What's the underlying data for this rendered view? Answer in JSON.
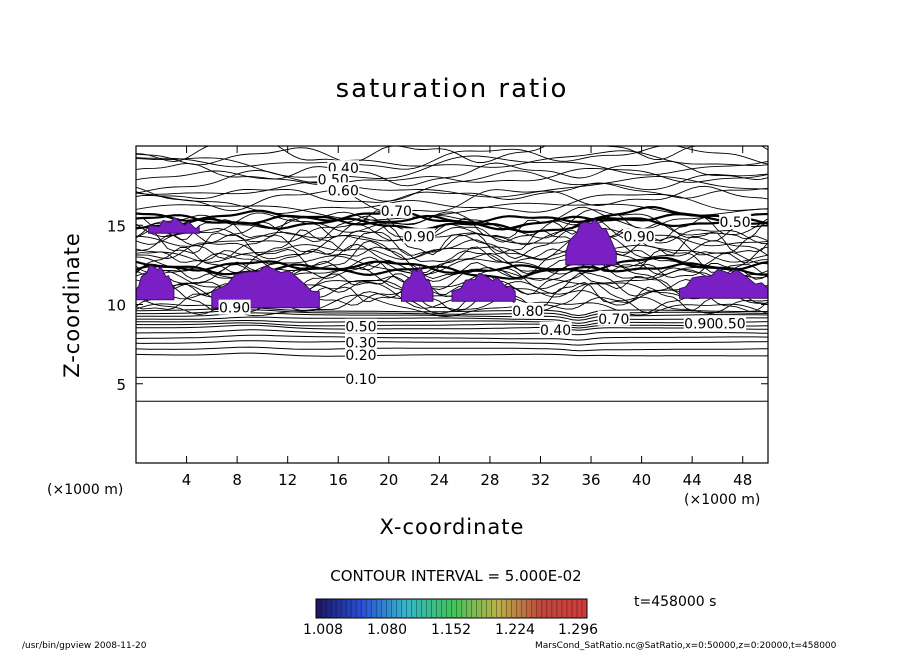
{
  "title": "saturation ratio",
  "xlabel": "X-coordinate",
  "ylabel": "Z-coordinate",
  "x_unit_left": "(×1000 m)",
  "x_unit_right": "(×1000 m)",
  "contour_interval": "CONTOUR INTERVAL = 5.000E-02",
  "time_label": "t=458000  s",
  "footer_left": "/usr/bin/gpview   2008-11-20",
  "footer_right": "MarsCond_SatRatio.nc@SatRatio,x=0:50000,z=0:20000,t=458000",
  "colorbar": {
    "labels": [
      "1.008",
      "1.080",
      "1.152",
      "1.224",
      "1.296"
    ],
    "colors": [
      "#1b1660",
      "#2a4fd8",
      "#37b6c9",
      "#3fc25a",
      "#b8b24a",
      "#c0483c",
      "#d03a3a"
    ],
    "range": [
      1.008,
      1.296
    ]
  },
  "chart_data": {
    "type": "contour",
    "title": "saturation ratio",
    "xlabel": "X-coordinate",
    "ylabel": "Z-coordinate",
    "x_ticks": [
      4,
      8,
      12,
      16,
      20,
      24,
      28,
      32,
      36,
      40,
      44,
      48
    ],
    "y_ticks": [
      5,
      10,
      15
    ],
    "xlim": [
      0,
      50
    ],
    "ylim": [
      0,
      20
    ],
    "x_unit": "(×1000 m)",
    "contour_interval": 0.05,
    "time": "t=458000  s",
    "contour_labels": [
      {
        "text": "0.10",
        "x": 17.8,
        "z": 5.3
      },
      {
        "text": "0.20",
        "x": 17.8,
        "z": 6.8
      },
      {
        "text": "0.30",
        "x": 17.8,
        "z": 7.6
      },
      {
        "text": "0.50",
        "x": 17.8,
        "z": 8.6
      },
      {
        "text": "0.40",
        "x": 33.2,
        "z": 8.4
      },
      {
        "text": "0.70",
        "x": 37.8,
        "z": 9.1
      },
      {
        "text": "0.90",
        "x": 44.6,
        "z": 8.8
      },
      {
        "text": "0.50",
        "x": 47.0,
        "z": 8.8
      },
      {
        "text": "0.90",
        "x": 7.8,
        "z": 9.8
      },
      {
        "text": "0.80",
        "x": 31.0,
        "z": 9.6
      },
      {
        "text": "0.40",
        "x": 16.4,
        "z": 18.6
      },
      {
        "text": "0.50",
        "x": 15.6,
        "z": 17.9
      },
      {
        "text": "0.60",
        "x": 16.4,
        "z": 17.2
      },
      {
        "text": "0.70",
        "x": 20.6,
        "z": 15.9
      },
      {
        "text": "0.90",
        "x": 22.4,
        "z": 14.3
      },
      {
        "text": "0.50",
        "x": 47.4,
        "z": 15.2
      },
      {
        "text": "0.90",
        "x": 39.8,
        "z": 14.3
      }
    ],
    "supersaturated_regions": [
      {
        "x": [
          1,
          5
        ],
        "z": [
          14.5,
          15.3
        ]
      },
      {
        "x": [
          0,
          3
        ],
        "z": [
          10.3,
          12.4
        ]
      },
      {
        "x": [
          6,
          14.5
        ],
        "z": [
          9.8,
          12.3
        ]
      },
      {
        "x": [
          21,
          23.5
        ],
        "z": [
          10.2,
          12.2
        ]
      },
      {
        "x": [
          25,
          30
        ],
        "z": [
          10.2,
          11.8
        ]
      },
      {
        "x": [
          34,
          38
        ],
        "z": [
          12.5,
          15.3
        ]
      },
      {
        "x": [
          43,
          50
        ],
        "z": [
          10.4,
          12.1
        ]
      }
    ]
  }
}
